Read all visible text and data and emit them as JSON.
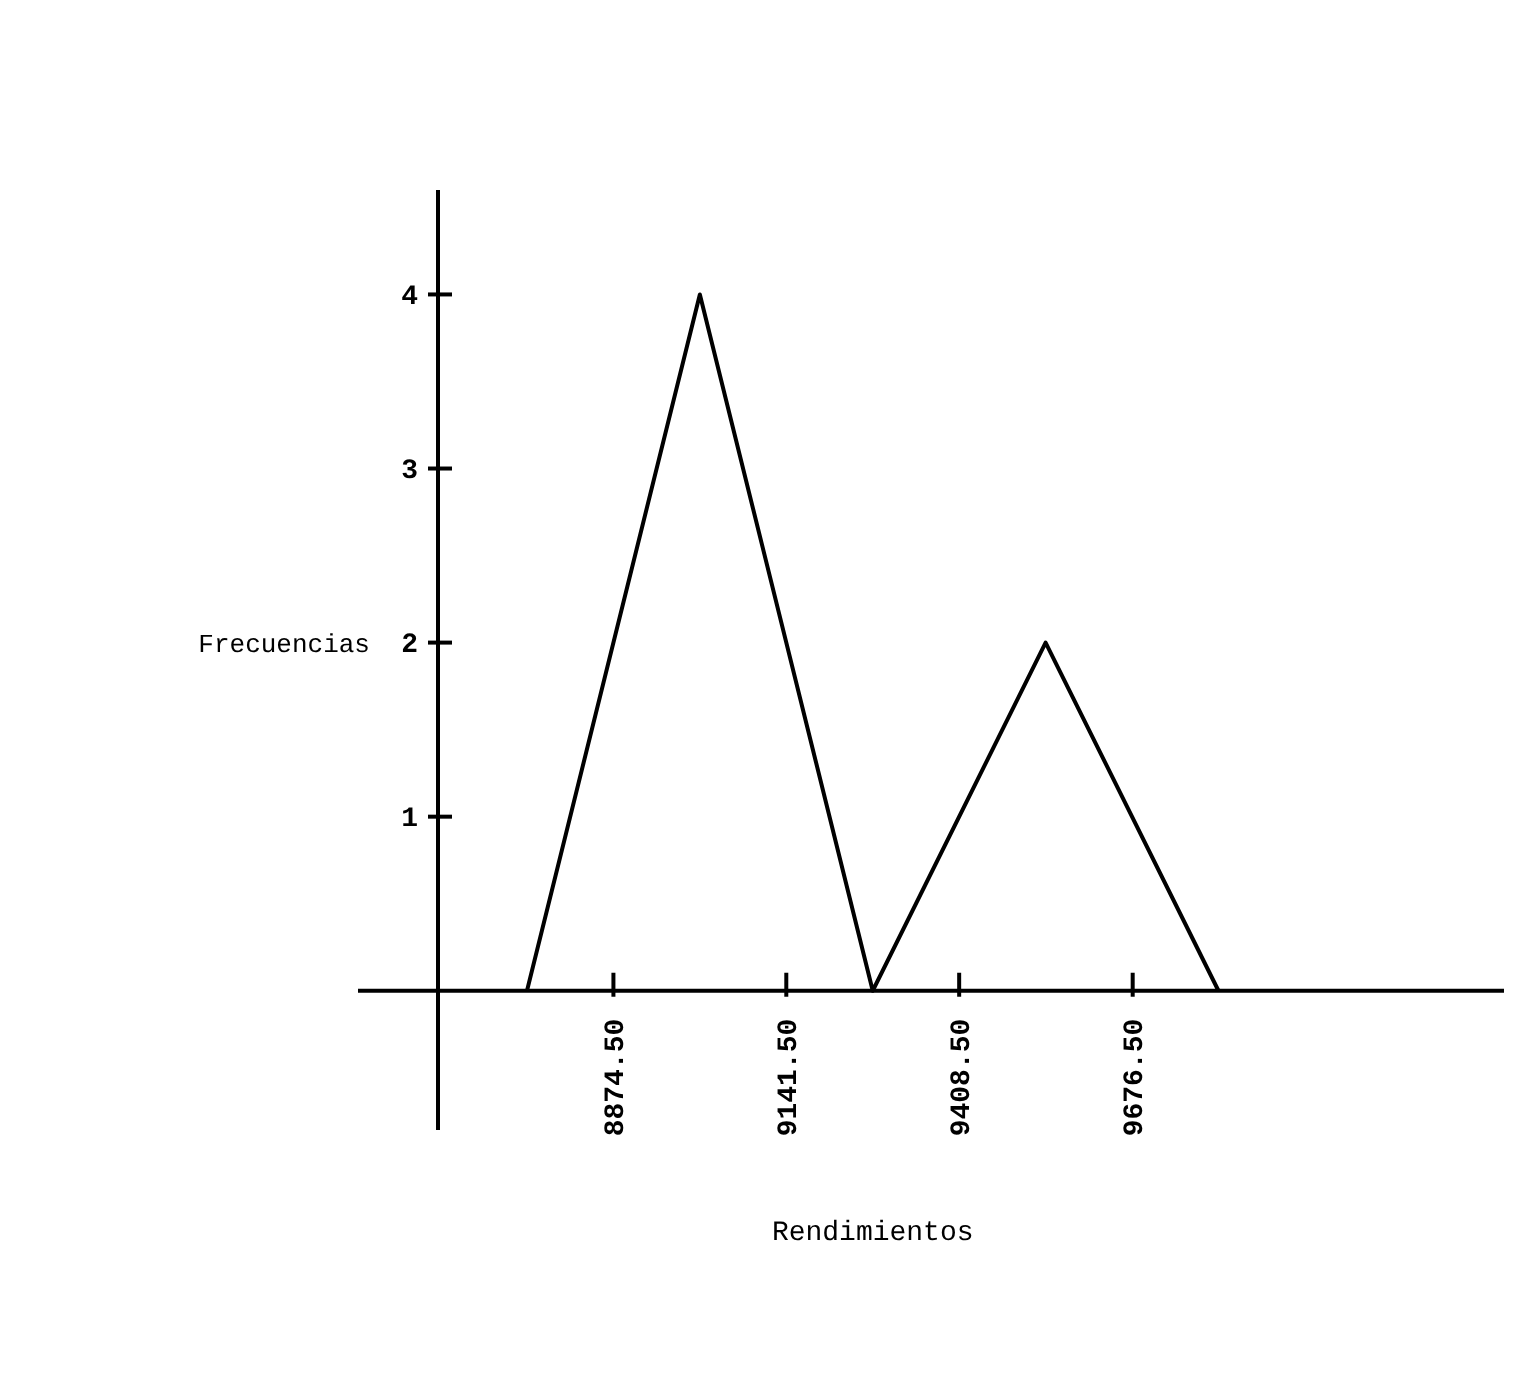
{
  "chart_data": {
    "type": "line",
    "xlabel": "Rendimientos",
    "ylabel": "Frecuencias",
    "x": [
      8741,
      9008,
      9275,
      9542,
      9809
    ],
    "values": [
      0,
      4,
      0,
      2,
      0
    ],
    "color": "#000000",
    "marker": "none",
    "line_style": "solid",
    "grid": false,
    "xlim": [
      8480,
      10250
    ],
    "xticks": [
      {
        "value": 8874.5,
        "label": "8874.50"
      },
      {
        "value": 9141.5,
        "label": "9141.50"
      },
      {
        "value": 9408.5,
        "label": "9408.50"
      },
      {
        "value": 9676.5,
        "label": "9676.50"
      }
    ],
    "ylim": [
      -0.8,
      4.6
    ],
    "yticks": [
      1,
      2,
      3,
      4
    ]
  }
}
